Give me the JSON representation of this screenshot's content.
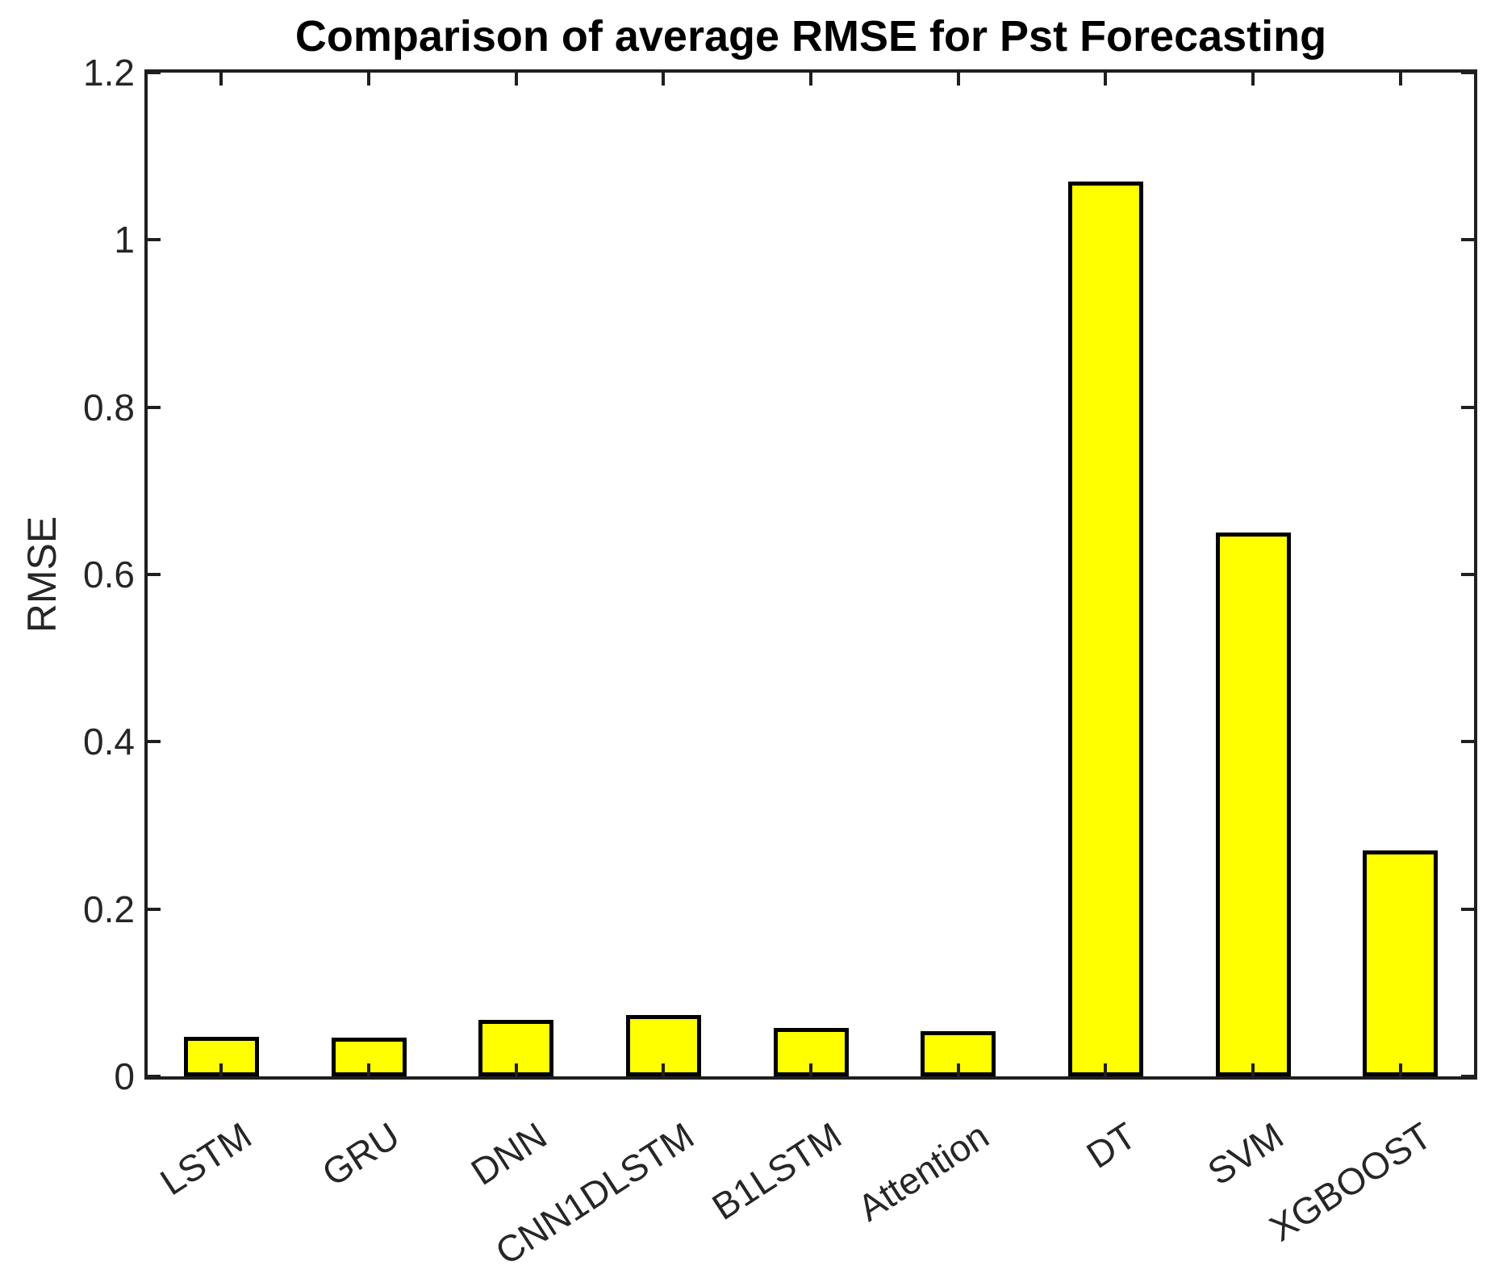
{
  "figure": {
    "background": "#ffffff",
    "axis_box": true
  },
  "chart_data": {
    "type": "bar",
    "title": "Comparison of average RMSE for Pst Forecasting",
    "xlabel": "",
    "ylabel": "RMSE",
    "categories": [
      "LSTM",
      "GRU",
      "DNN",
      "CNN1DLSTM",
      "B1LSTM",
      "Attention",
      "DT",
      "SVM",
      "XGBOOST"
    ],
    "values": [
      0.047,
      0.046,
      0.068,
      0.073,
      0.058,
      0.054,
      1.07,
      0.65,
      0.27
    ],
    "ylim": [
      0,
      1.2
    ],
    "yticks": [
      0,
      0.2,
      0.4,
      0.6,
      0.8,
      1,
      1.2
    ],
    "ytick_labels": [
      "0",
      "0.2",
      "0.4",
      "0.6",
      "0.8",
      "1",
      "1.2"
    ],
    "grid": false,
    "legend": "none",
    "bar_color": "#ffff00",
    "bar_edge_color": "#000000",
    "axis_color": "#1f1f1f",
    "text_color": "#262626",
    "xtick_label_rotation_deg": 33,
    "tick_direction": "in"
  }
}
